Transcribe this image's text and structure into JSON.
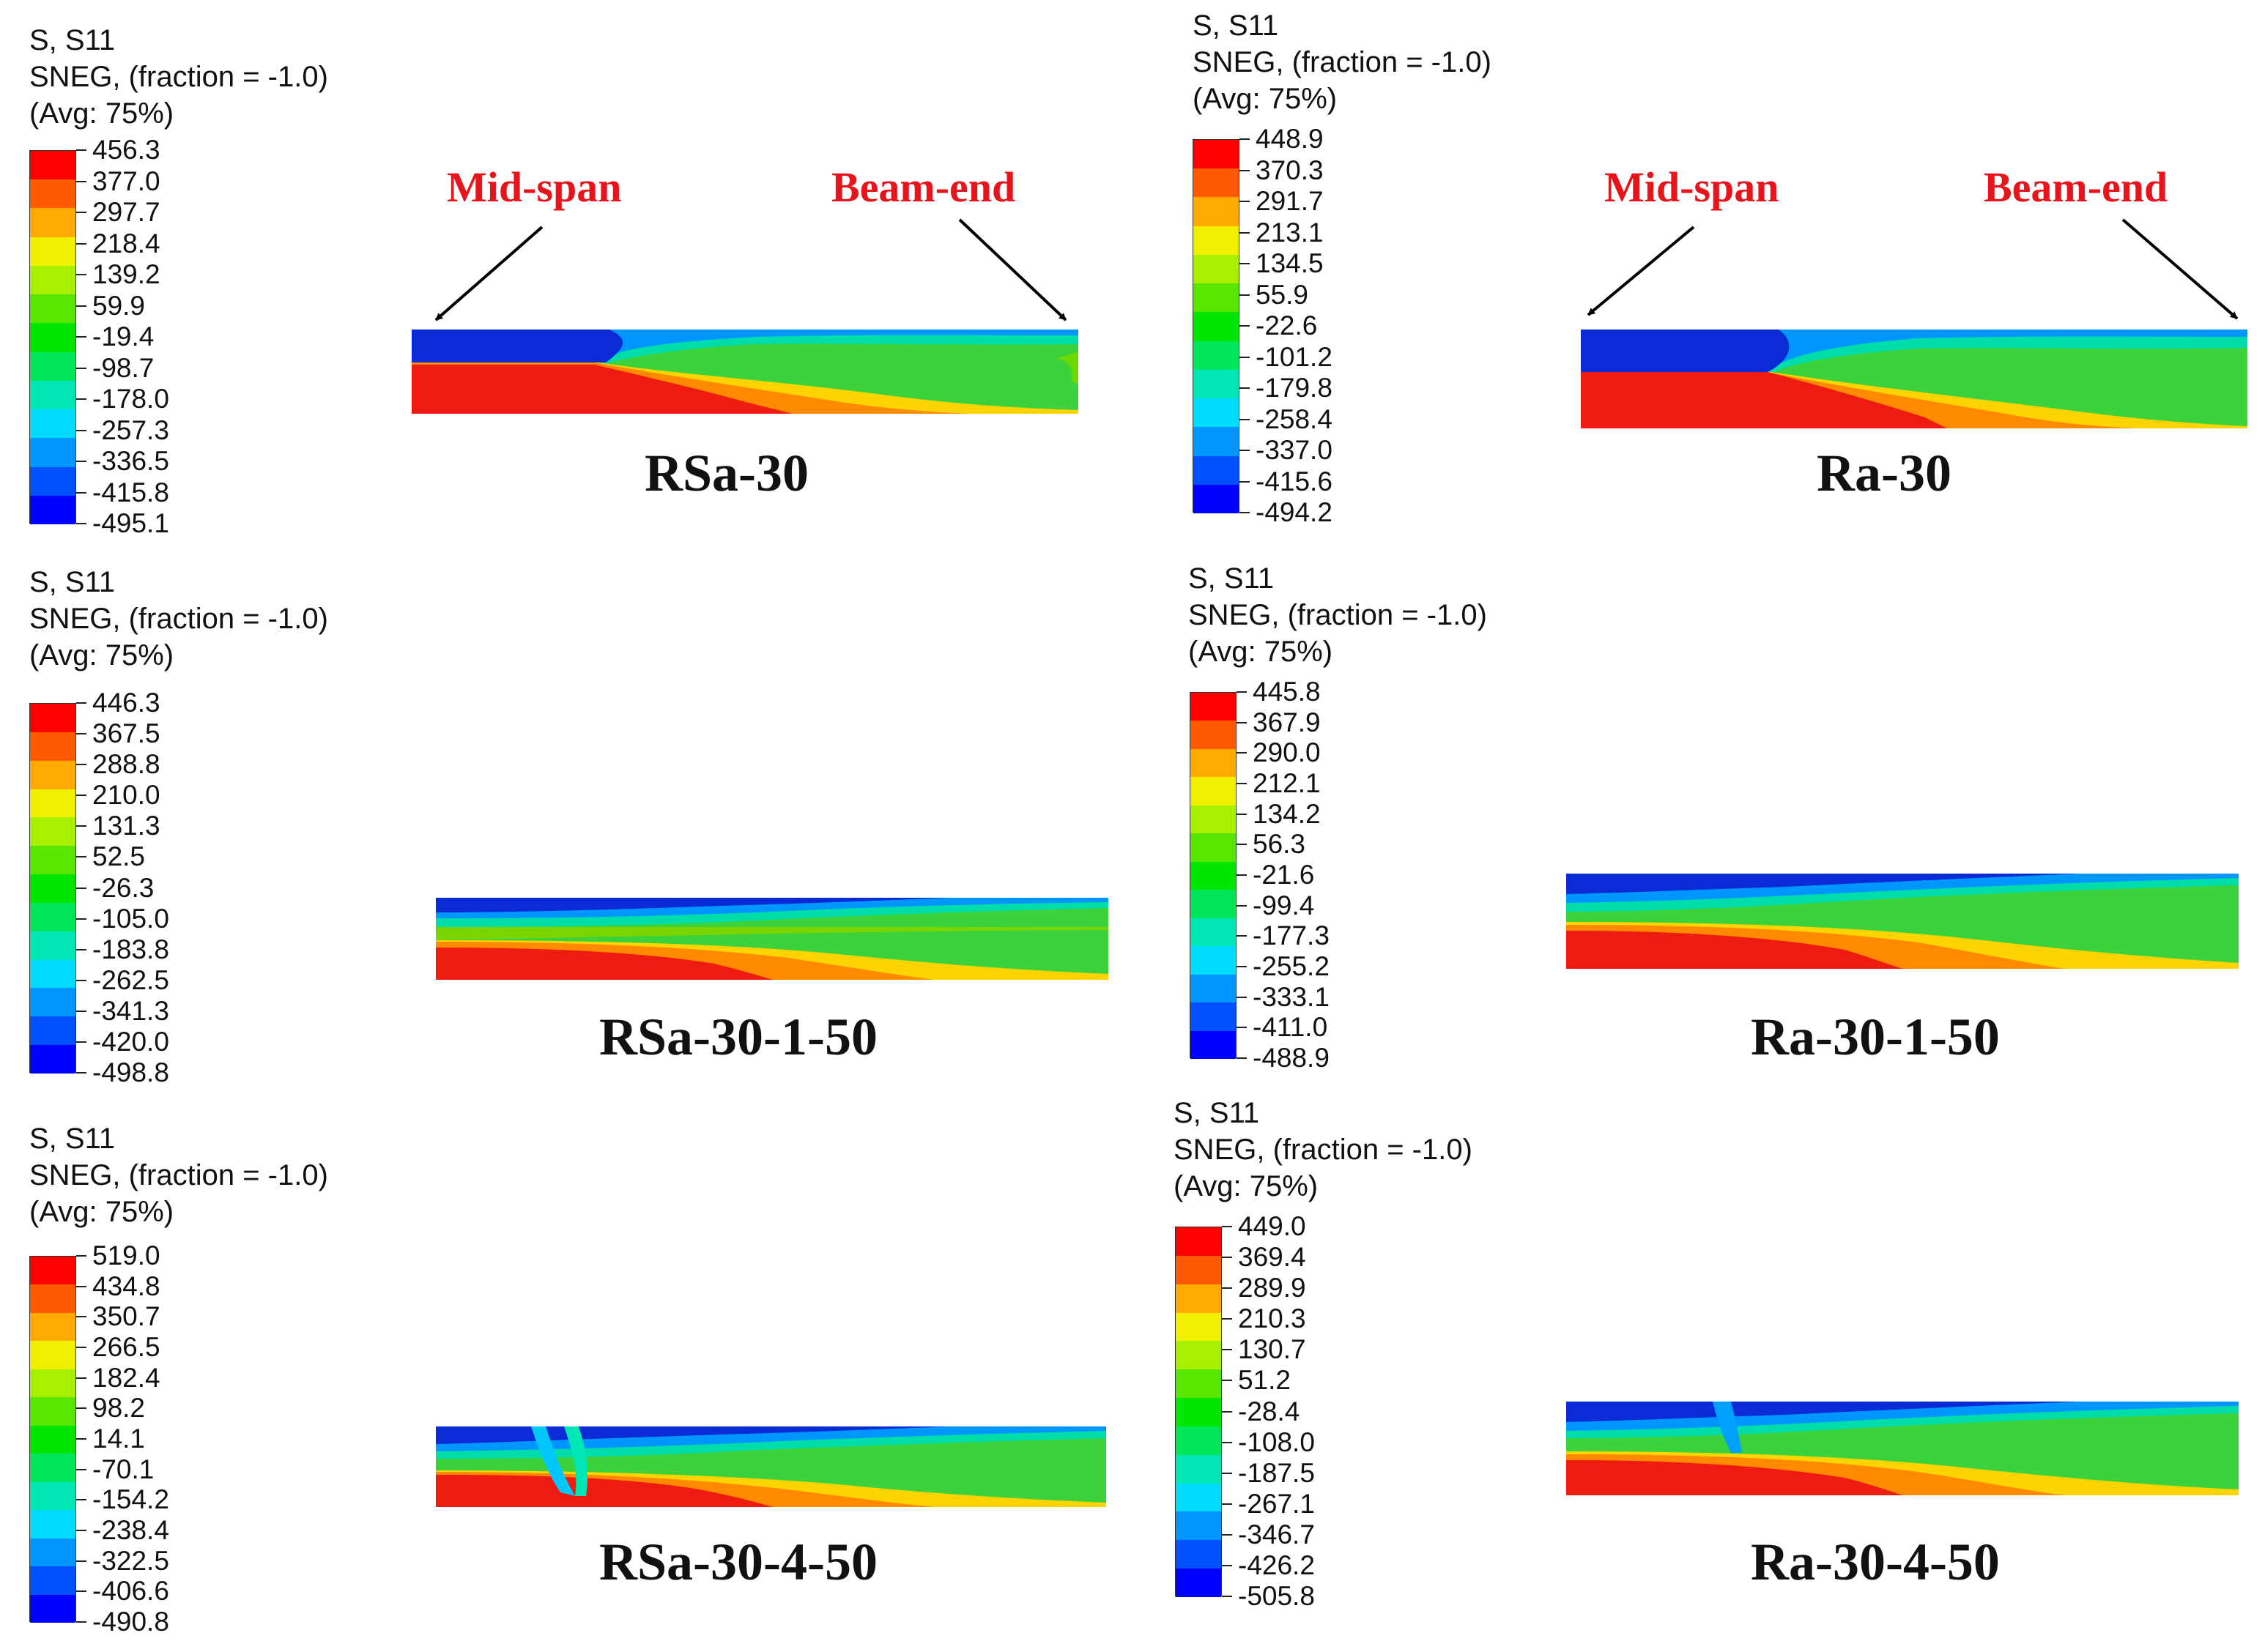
{
  "panels": [
    {
      "legend": {
        "line1": "S, S11",
        "line2": "SNEG, (fraction = -1.0)",
        "line3": "(Avg: 75%)",
        "values": [
          "456.3",
          "377.0",
          "297.7",
          "218.4",
          "139.2",
          "59.9",
          "-19.4",
          "-98.7",
          "-178.0",
          "-257.3",
          "-336.5",
          "-415.8",
          "-495.1"
        ]
      },
      "label": "RSa-30"
    },
    {
      "legend": {
        "line1": "S, S11",
        "line2": "SNEG, (fraction = -1.0)",
        "line3": "(Avg: 75%)",
        "values": [
          "448.9",
          "370.3",
          "291.7",
          "213.1",
          "134.5",
          "55.9",
          "-22.6",
          "-101.2",
          "-179.8",
          "-258.4",
          "-337.0",
          "-415.6",
          "-494.2"
        ]
      },
      "label": "Ra-30"
    },
    {
      "legend": {
        "line1": "S, S11",
        "line2": "SNEG, (fraction = -1.0)",
        "line3": "(Avg: 75%)",
        "values": [
          "446.3",
          "367.5",
          "288.8",
          "210.0",
          "131.3",
          "52.5",
          "-26.3",
          "-105.0",
          "-183.8",
          "-262.5",
          "-341.3",
          "-420.0",
          "-498.8"
        ]
      },
      "label": "RSa-30-1-50"
    },
    {
      "legend": {
        "line1": "S, S11",
        "line2": "SNEG, (fraction = -1.0)",
        "line3": "(Avg: 75%)",
        "values": [
          "445.8",
          "367.9",
          "290.0",
          "212.1",
          "134.2",
          "56.3",
          "-21.6",
          "-99.4",
          "-177.3",
          "-255.2",
          "-333.1",
          "-411.0",
          "-488.9"
        ]
      },
      "label": "Ra-30-1-50"
    },
    {
      "legend": {
        "line1": "S, S11",
        "line2": "SNEG, (fraction = -1.0)",
        "line3": "(Avg: 75%)",
        "values": [
          "519.0",
          "434.8",
          "350.7",
          "266.5",
          "182.4",
          "98.2",
          "14.1",
          "-70.1",
          "-154.2",
          "-238.4",
          "-322.5",
          "-406.6",
          "-490.8"
        ]
      },
      "label": "RSa-30-4-50"
    },
    {
      "legend": {
        "line1": "S, S11",
        "line2": "SNEG, (fraction = -1.0)",
        "line3": "(Avg: 75%)",
        "values": [
          "449.0",
          "369.4",
          "289.9",
          "210.3",
          "130.7",
          "51.2",
          "-28.4",
          "-108.0",
          "-187.5",
          "-267.1",
          "-346.7",
          "-426.2",
          "-505.8"
        ]
      },
      "label": "Ra-30-4-50"
    }
  ],
  "annotations": {
    "mid_span": "Mid-span",
    "beam_end": "Beam-end"
  },
  "colors": {
    "contour": [
      "#ff0000",
      "#ff5a00",
      "#ffaa00",
      "#f0f000",
      "#a8f000",
      "#5ae600",
      "#00e600",
      "#00e65a",
      "#00e6b4",
      "#00dcff",
      "#0096ff",
      "#0050ff",
      "#0000ff"
    ]
  }
}
